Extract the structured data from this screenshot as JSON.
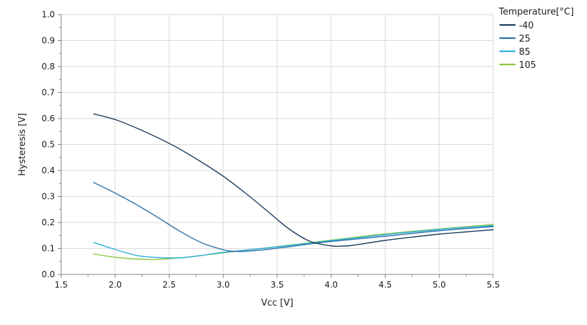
{
  "chart_data": {
    "type": "line",
    "xlabel": "Vcc [V]",
    "ylabel": "Hysteresis [V]",
    "xlim": [
      1.5,
      5.5
    ],
    "ylim": [
      0.0,
      1.0
    ],
    "x_ticks": [
      "1.5",
      "2.0",
      "2.5",
      "3.0",
      "3.5",
      "4.0",
      "4.5",
      "5.0",
      "5.5"
    ],
    "y_ticks": [
      "0.0",
      "0.1",
      "0.2",
      "0.3",
      "0.4",
      "0.5",
      "0.6",
      "0.7",
      "0.8",
      "0.9",
      "1.0"
    ],
    "grid": true,
    "legend": {
      "title": "Temperature[°C]",
      "position": "top-right"
    },
    "series": [
      {
        "name": "-40",
        "color": "#1b3a5c",
        "x": [
          1.8,
          2.0,
          2.2,
          2.4,
          2.6,
          2.8,
          3.0,
          3.2,
          3.4,
          3.6,
          3.8,
          4.0,
          4.1,
          4.2,
          4.5,
          4.8,
          5.0,
          5.2,
          5.5
        ],
        "y": [
          0.618,
          0.596,
          0.563,
          0.525,
          0.482,
          0.432,
          0.378,
          0.315,
          0.247,
          0.178,
          0.128,
          0.11,
          0.109,
          0.112,
          0.131,
          0.146,
          0.155,
          0.162,
          0.172
        ]
      },
      {
        "name": "25",
        "color": "#2a6fa8",
        "x": [
          1.8,
          2.0,
          2.2,
          2.4,
          2.6,
          2.8,
          3.0,
          3.1,
          3.2,
          3.4,
          3.6,
          3.8,
          4.0,
          4.5,
          5.0,
          5.5
        ],
        "y": [
          0.354,
          0.313,
          0.268,
          0.218,
          0.166,
          0.122,
          0.095,
          0.089,
          0.089,
          0.096,
          0.106,
          0.117,
          0.127,
          0.147,
          0.168,
          0.184
        ]
      },
      {
        "name": "85",
        "color": "#2bb0de",
        "x": [
          1.8,
          2.0,
          2.2,
          2.4,
          2.6,
          2.8,
          3.0,
          3.5,
          4.0,
          4.5,
          5.0,
          5.5
        ],
        "y": [
          0.123,
          0.096,
          0.073,
          0.065,
          0.064,
          0.073,
          0.085,
          0.106,
          0.13,
          0.153,
          0.173,
          0.188
        ]
      },
      {
        "name": "105",
        "color": "#8cc63f",
        "x": [
          1.8,
          2.0,
          2.2,
          2.4,
          2.6,
          2.8,
          3.0,
          3.5,
          4.0,
          4.5,
          5.0,
          5.5
        ],
        "y": [
          0.079,
          0.066,
          0.059,
          0.058,
          0.064,
          0.073,
          0.083,
          0.107,
          0.132,
          0.156,
          0.175,
          0.192
        ]
      }
    ]
  }
}
